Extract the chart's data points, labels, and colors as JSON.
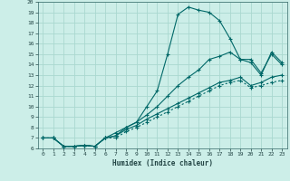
{
  "xlabel": "Humidex (Indice chaleur)",
  "bg_color": "#cceee8",
  "grid_color": "#aad8d0",
  "line_color": "#006868",
  "xlim": [
    -0.5,
    23.5
  ],
  "ylim": [
    6,
    20
  ],
  "xticks": [
    0,
    1,
    2,
    3,
    4,
    5,
    6,
    7,
    8,
    9,
    10,
    11,
    12,
    13,
    14,
    15,
    16,
    17,
    18,
    19,
    20,
    21,
    22,
    23
  ],
  "yticks": [
    6,
    7,
    8,
    9,
    10,
    11,
    12,
    13,
    14,
    15,
    16,
    17,
    18,
    19,
    20
  ],
  "line1_x": [
    0,
    1,
    2,
    3,
    4,
    5,
    6,
    7,
    8,
    9,
    10,
    11,
    12,
    13,
    14,
    15,
    16,
    17,
    18,
    19,
    20,
    21,
    22,
    23
  ],
  "line1_y": [
    7.0,
    7.0,
    6.2,
    6.2,
    6.3,
    6.2,
    7.0,
    7.2,
    8.0,
    8.5,
    10.0,
    11.5,
    15.0,
    18.8,
    19.5,
    19.2,
    19.0,
    18.2,
    16.5,
    14.5,
    14.5,
    13.2,
    15.0,
    14.0
  ],
  "line2_x": [
    0,
    1,
    2,
    3,
    4,
    5,
    6,
    7,
    8,
    9,
    10,
    11,
    12,
    13,
    14,
    15,
    16,
    17,
    18,
    19,
    20,
    21,
    22,
    23
  ],
  "line2_y": [
    7.0,
    7.0,
    6.2,
    6.2,
    6.3,
    6.2,
    7.0,
    7.5,
    8.0,
    8.5,
    9.2,
    10.0,
    11.0,
    12.0,
    12.8,
    13.5,
    14.5,
    14.8,
    15.2,
    14.5,
    14.2,
    13.0,
    15.2,
    14.2
  ],
  "line3_x": [
    0,
    1,
    2,
    3,
    4,
    5,
    6,
    7,
    8,
    9,
    10,
    11,
    12,
    13,
    14,
    15,
    16,
    17,
    18,
    19,
    20,
    21,
    22,
    23
  ],
  "line3_y": [
    7.0,
    7.0,
    6.2,
    6.2,
    6.3,
    6.2,
    7.0,
    7.2,
    7.8,
    8.2,
    8.8,
    9.3,
    9.8,
    10.3,
    10.8,
    11.3,
    11.8,
    12.3,
    12.5,
    12.8,
    12.0,
    12.3,
    12.8,
    13.0
  ],
  "line4_x": [
    0,
    1,
    2,
    3,
    4,
    5,
    6,
    7,
    8,
    9,
    10,
    11,
    12,
    13,
    14,
    15,
    16,
    17,
    18,
    19,
    20,
    21,
    22,
    23
  ],
  "line4_y": [
    7.0,
    7.0,
    6.2,
    6.2,
    6.3,
    6.2,
    7.0,
    7.0,
    7.6,
    8.0,
    8.5,
    9.0,
    9.5,
    10.0,
    10.5,
    11.0,
    11.5,
    12.0,
    12.3,
    12.5,
    11.8,
    12.0,
    12.3,
    12.5
  ]
}
